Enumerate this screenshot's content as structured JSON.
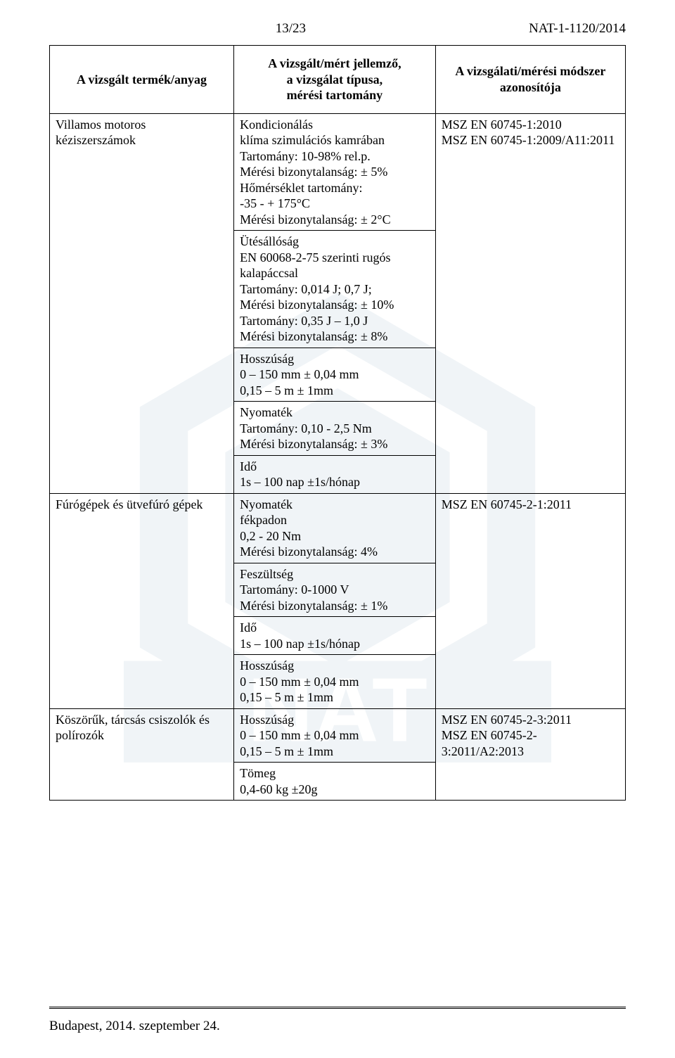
{
  "header": {
    "page_num": "13/23",
    "doc_id": "NAT-1-1120/2014"
  },
  "table": {
    "col_headers": {
      "col1": "A vizsgált termék/anyag",
      "col2": "A vizsgált/mért jellemző,\na vizsgálat típusa,\nmérési tartomány",
      "col3": "A vizsgálati/mérési módszer\nazonosítója"
    },
    "row1": {
      "product": "Villamos motoros kéziszerszámok",
      "method_block": "Kondicionálás\nklíma szimulációs kamrában\nTartomány: 10-98% rel.p.\nMérési bizonytalanság: ± 5%\nHőmérséklet tartomány:\n-35 - + 175°C\nMérési bizonytalanság: ± 2°C",
      "id_block": "MSZ EN 60745-1:2010\nMSZ EN 60745-1:2009/A11:2011"
    },
    "row2": {
      "method_block": "Ütésállóság\nEN 60068-2-75 szerinti rugós\nkalapáccsal\nTartomány: 0,014 J; 0,7 J;\nMérési bizonytalanság: ± 10%\nTartomány: 0,35 J – 1,0 J\nMérési bizonytalanság: ± 8%"
    },
    "row3": {
      "method_block": "Hosszúság\n0 – 150 mm   ± 0,04 mm\n0,15 – 5 m   ± 1mm"
    },
    "row4": {
      "method_block": "Nyomaték\nTartomány: 0,10 - 2,5 Nm\nMérési bizonytalanság: ± 3%"
    },
    "row5": {
      "method_block": "Idő\n1s – 100 nap   ±1s/hónap"
    },
    "row6": {
      "product": "Fúrógépek és ütvefúró gépek",
      "method_block": "Nyomaték\nfékpadon\n0,2 - 20 Nm\nMérési bizonytalanság:  4%",
      "id_block": "MSZ EN 60745-2-1:2011"
    },
    "row7": {
      "method_block": "Feszültség\nTartomány: 0-1000 V\nMérési bizonytalanság: ± 1%"
    },
    "row8": {
      "method_block": "Idő\n1s – 100 nap   ±1s/hónap"
    },
    "row9": {
      "method_block": "Hosszúság\n0 – 150 mm   ± 0,04 mm\n0,15 – 5 m   ± 1mm"
    },
    "row10": {
      "product": "Köszörűk, tárcsás csiszolók és\npolírozók",
      "method_block": "Hosszúság\n0 – 150 mm   ± 0,04 mm\n0,15 – 5 m   ± 1mm",
      "id_block": "MSZ EN 60745-2-3:2011\nMSZ EN 60745-2-3:2011/A2:2013"
    },
    "row11": {
      "method_block": "Tömeg\n0,4-60 kg   ±20g"
    }
  },
  "footer": {
    "text": "Budapest, 2014. szeptember 24."
  },
  "style": {
    "background_color": "#ffffff",
    "watermark_color": "#c7d7e2",
    "text_color": "#000000",
    "border_color": "#000000",
    "font_family": "Times New Roman",
    "body_font_size_pt": 14,
    "header_font_size_pt": 14
  }
}
